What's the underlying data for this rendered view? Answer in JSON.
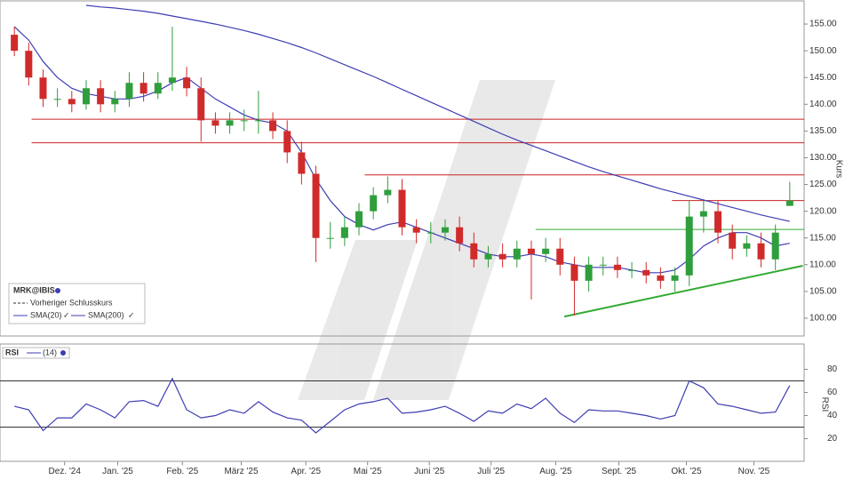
{
  "chart_data": [
    {
      "type": "candlestick",
      "ylabel": "Kurs",
      "legend_title": "MRK@IBIS",
      "legend_note": "Vorheriger Schlusskurs",
      "up_color": "#2f9e3c",
      "down_color": "#d02b2b",
      "xlim": [
        0,
        56
      ],
      "ylim": [
        97,
        158.5
      ],
      "yticks": [
        {
          "value": 100,
          "label": "100.00"
        },
        {
          "value": 105,
          "label": "105.00"
        },
        {
          "value": 110,
          "label": "110.00"
        },
        {
          "value": 115,
          "label": "115.00"
        },
        {
          "value": 120,
          "label": "120.00"
        },
        {
          "value": 125,
          "label": "125.00"
        },
        {
          "value": 130,
          "label": "130.00"
        },
        {
          "value": 135,
          "label": "135.00"
        },
        {
          "value": 140,
          "label": "140.00"
        },
        {
          "value": 145,
          "label": "145.00"
        },
        {
          "value": 150,
          "label": "150.00"
        },
        {
          "value": 155,
          "label": "155.00"
        }
      ],
      "x": [
        1,
        2,
        3,
        4,
        5,
        6,
        7,
        8,
        9,
        10,
        11,
        12,
        13,
        14,
        15,
        16,
        17,
        18,
        19,
        20,
        21,
        22,
        23,
        24,
        25,
        26,
        27,
        28,
        29,
        30,
        31,
        32,
        33,
        34,
        35,
        36,
        37,
        38,
        39,
        40,
        41,
        42,
        43,
        44,
        45,
        46,
        47,
        48,
        49,
        50,
        51,
        52,
        53,
        54,
        55
      ],
      "open": [
        153,
        150,
        145,
        141,
        141,
        140,
        143,
        140,
        141,
        144,
        142,
        144,
        145,
        143,
        137,
        136,
        137,
        137,
        137,
        135,
        131,
        127,
        115,
        115,
        117,
        120,
        123,
        124,
        117,
        116,
        116,
        117,
        114,
        111,
        112,
        111,
        113,
        112,
        113,
        110,
        107,
        110,
        110,
        109,
        109,
        108,
        107,
        108,
        119,
        120,
        116,
        113,
        114,
        111,
        121
      ],
      "high": [
        154.5,
        151.5,
        146.5,
        143,
        142.5,
        144.5,
        144.5,
        142.5,
        146,
        146,
        146,
        154.5,
        147,
        145,
        138.5,
        138.5,
        139,
        142.5,
        138.5,
        137,
        133,
        128.5,
        118,
        119,
        121.5,
        124.5,
        126.5,
        126,
        118.5,
        118,
        118.5,
        119,
        116,
        113.5,
        114,
        114.5,
        114.5,
        115,
        115,
        111.5,
        111.5,
        111.5,
        111.5,
        110.5,
        110.5,
        109.5,
        109.5,
        122,
        122,
        122,
        117.5,
        115.5,
        116,
        117.5,
        125.5
      ],
      "low": [
        149,
        143.5,
        139.5,
        139.5,
        138.5,
        139,
        138.5,
        138.5,
        139.5,
        140.5,
        141,
        142.5,
        141.5,
        133,
        134.5,
        134.5,
        135,
        134.5,
        133.5,
        129,
        125,
        110.5,
        113,
        113.5,
        115.5,
        118.5,
        121.5,
        115.5,
        114,
        114,
        114.5,
        112.5,
        109.5,
        109.5,
        109.5,
        109.5,
        103.5,
        110.5,
        108,
        100.5,
        105,
        108,
        107.5,
        107.5,
        106.5,
        105.5,
        105,
        106,
        116,
        114,
        111,
        111.5,
        109.5,
        109,
        121
      ],
      "close": [
        150,
        145,
        141,
        141,
        140,
        143,
        140,
        141,
        144,
        142,
        144,
        145,
        143,
        137,
        136,
        137,
        137,
        137,
        135,
        131,
        127,
        115,
        115,
        117,
        120,
        123,
        124,
        117,
        116,
        116,
        117,
        114,
        111,
        112,
        111,
        113,
        112,
        113,
        110,
        107,
        110,
        110,
        109,
        109,
        108,
        107,
        108,
        119,
        120,
        116,
        113,
        114,
        111,
        116,
        122
      ],
      "series": [
        {
          "name": "SMA(20)",
          "color": "#3d3db3",
          "values": [
            154.5,
            152,
            148,
            145,
            143,
            142,
            141.5,
            141,
            141,
            141.5,
            142.5,
            144,
            145,
            143,
            141,
            139.5,
            138,
            137,
            136.5,
            135,
            131,
            126,
            122,
            119,
            117.5,
            116.5,
            117.5,
            118,
            117,
            116,
            115,
            114,
            113,
            112,
            111.5,
            111.5,
            112,
            111.5,
            110.5,
            110,
            109.5,
            109.5,
            109.5,
            109,
            108.5,
            108.5,
            109,
            111,
            113.5,
            115,
            116,
            116,
            115,
            113.5,
            114
          ]
        },
        {
          "name": "SMA(200)",
          "color": "#3d3db3",
          "values": [
            null,
            null,
            null,
            null,
            null,
            158.5,
            158.2,
            158,
            157.7,
            157.4,
            157,
            156.5,
            156,
            155.5,
            155,
            154.4,
            153.8,
            153.1,
            152.3,
            151.5,
            150.6,
            149.6,
            148.5,
            147.4,
            146.3,
            145.2,
            144,
            142.8,
            141.6,
            140.4,
            139.2,
            138,
            136.8,
            135.6,
            134.4,
            133.3,
            132.3,
            131.3,
            130.3,
            129.3,
            128.3,
            127.4,
            126.6,
            125.8,
            125,
            124.2,
            123.5,
            122.8,
            122.1,
            121.4,
            120.7,
            120,
            119.3,
            118.7,
            118.1
          ]
        }
      ],
      "hlines": [
        {
          "y": 137.2,
          "from": 2.2,
          "color": "#cc2222"
        },
        {
          "y": 132.8,
          "from": 2.2,
          "color": "#cc2222"
        },
        {
          "y": 126.8,
          "from": 25.4,
          "color": "#cc2222"
        },
        {
          "y": 122,
          "from": 46.8,
          "color": "#cc2222"
        },
        {
          "y": 116.6,
          "from": 37.3,
          "color": "#33aa33"
        }
      ],
      "trendline": {
        "x": [
          39.3,
          55.9
        ],
        "y": [
          100.3,
          109.8
        ],
        "color": "#33aa33"
      }
    },
    {
      "type": "line",
      "title": "RSI",
      "ylabel": "RSI",
      "xlim": [
        0,
        56
      ],
      "ylim": [
        0,
        100
      ],
      "yticks": [
        20,
        40,
        60,
        80
      ],
      "levels": [
        70,
        30
      ],
      "xticks": [
        {
          "value": 4.5,
          "label": "Dez. '24"
        },
        {
          "value": 8.2,
          "label": "Jan. '25"
        },
        {
          "value": 12.7,
          "label": "Feb. '25"
        },
        {
          "value": 16.8,
          "label": "März '25"
        },
        {
          "value": 21.3,
          "label": "Apr. '25"
        },
        {
          "value": 25.6,
          "label": "Mai '25"
        },
        {
          "value": 29.9,
          "label": "Juni '25"
        },
        {
          "value": 34.2,
          "label": "Juli '25"
        },
        {
          "value": 38.7,
          "label": "Aug. '25"
        },
        {
          "value": 43.1,
          "label": "Sept. '25"
        },
        {
          "value": 47.8,
          "label": "Okt. '25"
        },
        {
          "value": 52.5,
          "label": "Nov. '25"
        }
      ],
      "x": [
        1,
        2,
        3,
        4,
        5,
        6,
        7,
        8,
        9,
        10,
        11,
        12,
        13,
        14,
        15,
        16,
        17,
        18,
        19,
        20,
        21,
        22,
        23,
        24,
        25,
        26,
        27,
        28,
        29,
        30,
        31,
        32,
        33,
        34,
        35,
        36,
        37,
        38,
        39,
        40,
        41,
        42,
        43,
        44,
        45,
        46,
        47,
        48,
        49,
        50,
        51,
        52,
        53,
        54,
        55
      ],
      "series": [
        {
          "name": "(14)",
          "color": "#3d3db3",
          "values": [
            48,
            45,
            27,
            38,
            38,
            50,
            45,
            38,
            52,
            53,
            48,
            72,
            45,
            38,
            40,
            45,
            42,
            52,
            43,
            38,
            36,
            25,
            35,
            45,
            50,
            52,
            55,
            42,
            43,
            45,
            48,
            42,
            35,
            44,
            42,
            50,
            46,
            55,
            42,
            34,
            45,
            44,
            44,
            42,
            40,
            37,
            40,
            70,
            64,
            50,
            48,
            45,
            42,
            43,
            66
          ]
        }
      ]
    }
  ]
}
